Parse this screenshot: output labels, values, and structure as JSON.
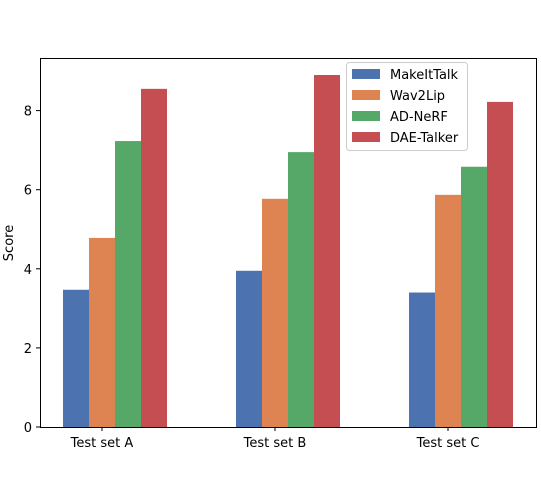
{
  "chart_data": {
    "type": "bar",
    "title": "",
    "xlabel": "",
    "ylabel": "Score",
    "categories": [
      "Test set A",
      "Test set B",
      "Test set C"
    ],
    "series": [
      {
        "name": "MakeItTalk",
        "color": "#4c72b0",
        "values": [
          3.47,
          3.95,
          3.4
        ]
      },
      {
        "name": "Wav2Lip",
        "color": "#dd8452",
        "values": [
          4.78,
          5.77,
          5.87
        ]
      },
      {
        "name": "AD-NeRF",
        "color": "#55a868",
        "values": [
          7.23,
          6.95,
          6.58
        ]
      },
      {
        "name": "DAE-Talker",
        "color": "#c44e52",
        "values": [
          8.55,
          8.9,
          8.22
        ]
      }
    ],
    "ylim": [
      0,
      9.33
    ],
    "yticks": [
      "0",
      "2",
      "4",
      "6",
      "8"
    ],
    "grid": false,
    "legend_position": "top-right"
  }
}
